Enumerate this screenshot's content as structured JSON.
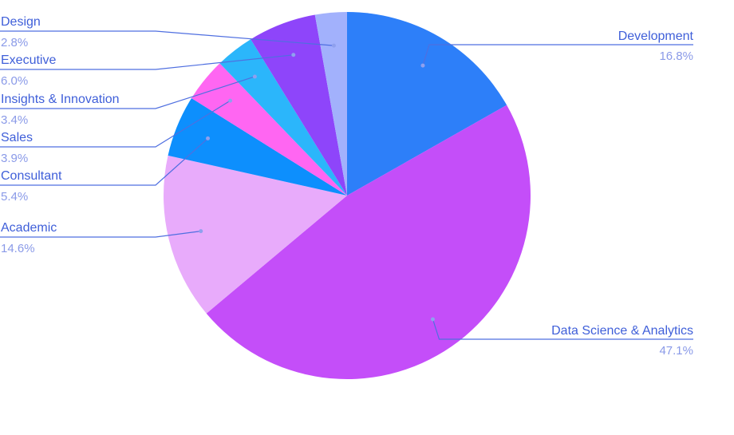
{
  "chart_data": {
    "type": "pie",
    "slices": [
      {
        "label": "Development",
        "value": 16.8,
        "value_label": "16.8%",
        "color": "#2d7ff9",
        "side": "right"
      },
      {
        "label": "Data Science & Analytics",
        "value": 47.1,
        "value_label": "47.1%",
        "color": "#c44ef9",
        "side": "right"
      },
      {
        "label": "Academic",
        "value": 14.6,
        "value_label": "14.6%",
        "color": "#e8abfb",
        "side": "left"
      },
      {
        "label": "Consultant",
        "value": 5.4,
        "value_label": "5.4%",
        "color": "#0d8ffd",
        "side": "left"
      },
      {
        "label": "Sales",
        "value": 3.9,
        "value_label": "3.9%",
        "color": "#ff66f2",
        "side": "left"
      },
      {
        "label": "Insights & Innovation",
        "value": 3.4,
        "value_label": "3.4%",
        "color": "#2bb6fb",
        "side": "left"
      },
      {
        "label": "Executive",
        "value": 6.0,
        "value_label": "6.0%",
        "color": "#8e45fa",
        "side": "left"
      },
      {
        "label": "Design",
        "value": 2.8,
        "value_label": "2.8%",
        "color": "#a2b1fc",
        "side": "left"
      }
    ],
    "start_angle": "top, clockwise",
    "legend": "none (callout labels)"
  }
}
